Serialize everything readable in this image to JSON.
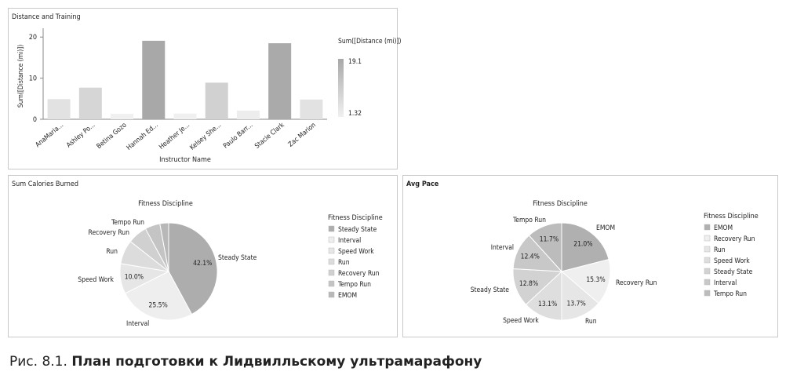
{
  "panels": {
    "bar": {
      "title": "Distance and Training"
    },
    "calories": {
      "title": "Sum Calories Burned"
    },
    "pace": {
      "title": "Avg Pace"
    }
  },
  "caption": {
    "prefix": "Рис. 8.1.",
    "title": "План подготовки к Лидвилльскому ультрамарафону"
  },
  "chart_data": [
    {
      "id": "distance",
      "type": "bar",
      "title": "",
      "xlabel": "Instructor Name",
      "ylabel": "Sum([Distance (mi)])",
      "categories": [
        "AnaMaria...",
        "Ashley Po...",
        "Betina Gozo",
        "Hannah Ed...",
        "Heather Je...",
        "Kelsey She...",
        "Paulo Barr...",
        "Stacie Clark",
        "Zac Marion"
      ],
      "values": [
        4.9,
        7.7,
        1.32,
        19.1,
        1.4,
        8.9,
        2.1,
        18.5,
        4.8
      ],
      "ylim": [
        0,
        21
      ],
      "yticks": [
        "0",
        "10",
        "20"
      ],
      "grid": false,
      "legend": {
        "title": "Sum([Distance (mi)])",
        "max_label": "19.1",
        "min_label": "1.32",
        "placement": "right"
      },
      "colors": {
        "low": "#f0f0f0",
        "high": "#a8a8a8"
      }
    },
    {
      "id": "calories",
      "type": "pie",
      "title": "Fitness Discipline",
      "slices": [
        {
          "name": "Steady State",
          "value": 42.1,
          "color": "#adadad",
          "pct_label": "42.1%"
        },
        {
          "name": "Interval",
          "value": 25.5,
          "color": "#eeeeee",
          "pct_label": "25.5%"
        },
        {
          "name": "Speed Work",
          "value": 10.0,
          "color": "#e6e6e6",
          "pct_label": "10.0%"
        },
        {
          "name": "Run",
          "value": 8.0,
          "color": "#dcdcdc",
          "pct_label": ""
        },
        {
          "name": "Recovery  Run",
          "value": 6.5,
          "color": "#d0d0d0",
          "pct_label": ""
        },
        {
          "name": "Tempo  Run",
          "value": 5.0,
          "color": "#c4c4c4",
          "pct_label": ""
        },
        {
          "name": "EMOM",
          "value": 2.9,
          "color": "#b8b8b8",
          "pct_label": ""
        }
      ],
      "legend": {
        "title": "Fitness Discipline",
        "placement": "right",
        "items": [
          "Steady State",
          "Interval",
          "Speed Work",
          "Run",
          "Recovery  Run",
          "Tempo  Run",
          "EMOM"
        ]
      }
    },
    {
      "id": "pace",
      "type": "pie",
      "title": "Fitness Discipline",
      "slices": [
        {
          "name": "EMOM",
          "value": 21.0,
          "color": "#b0b0b0",
          "pct_label": "21.0%"
        },
        {
          "name": "Recovery  Run",
          "value": 15.3,
          "color": "#efefef",
          "pct_label": "15.3%"
        },
        {
          "name": "Run",
          "value": 13.7,
          "color": "#e6e6e6",
          "pct_label": "13.7%"
        },
        {
          "name": "Speed Work",
          "value": 13.1,
          "color": "#dedede",
          "pct_label": "13.1%"
        },
        {
          "name": "Steady State",
          "value": 12.8,
          "color": "#d2d2d2",
          "pct_label": "12.8%"
        },
        {
          "name": "Interval",
          "value": 12.4,
          "color": "#c8c8c8",
          "pct_label": "12.4%"
        },
        {
          "name": "Tempo  Run",
          "value": 11.7,
          "color": "#bcbcbc",
          "pct_label": "11.7%"
        }
      ],
      "legend": {
        "title": "Fitness Discipline",
        "placement": "right",
        "items": [
          "EMOM",
          "Recovery  Run",
          "Run",
          "Speed Work",
          "Steady State",
          "Interval",
          "Tempo  Run"
        ]
      }
    }
  ]
}
